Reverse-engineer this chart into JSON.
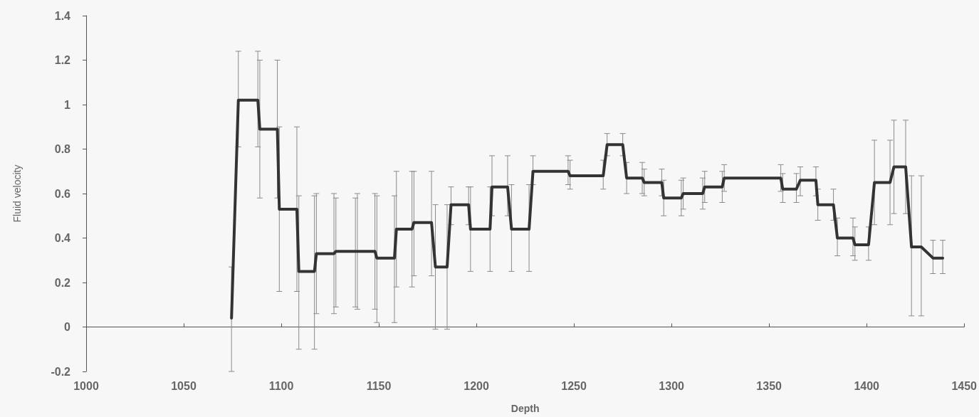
{
  "chart_data": {
    "type": "line",
    "xlabel": "Depth",
    "ylabel": "Fluid velocity",
    "xlim": [
      1000,
      1450
    ],
    "xticks": [
      1000,
      1050,
      1100,
      1150,
      1200,
      1250,
      1300,
      1350,
      1400,
      1450
    ],
    "ylim": [
      -0.2,
      1.4
    ],
    "yticks": [
      -0.2,
      0,
      0.2,
      0.4,
      0.6,
      0.8,
      1,
      1.2,
      1.4
    ],
    "marker": "none",
    "line_style": "solid",
    "series": [
      {
        "color": "#333333",
        "x": [
          1074.5,
          1078,
          1088,
          1089,
          1098,
          1099,
          1108,
          1109,
          1117,
          1118,
          1127,
          1128,
          1138,
          1139,
          1148,
          1149,
          1158,
          1159,
          1167,
          1168,
          1177,
          1179,
          1185,
          1187,
          1196,
          1197,
          1207,
          1208,
          1216,
          1218,
          1227,
          1229,
          1247,
          1248,
          1265,
          1267,
          1275,
          1277,
          1285,
          1286,
          1295,
          1296,
          1305,
          1306,
          1316,
          1317,
          1326,
          1327,
          1356,
          1357,
          1364,
          1366,
          1374,
          1375,
          1383,
          1385,
          1393,
          1394,
          1401,
          1404,
          1412,
          1414,
          1420,
          1423,
          1428,
          1434,
          1439
        ],
        "values": [
          0.04,
          1.02,
          1.02,
          0.89,
          0.89,
          0.53,
          0.53,
          0.25,
          0.25,
          0.33,
          0.33,
          0.34,
          0.34,
          0.34,
          0.34,
          0.31,
          0.31,
          0.44,
          0.44,
          0.47,
          0.47,
          0.27,
          0.27,
          0.55,
          0.55,
          0.44,
          0.44,
          0.63,
          0.63,
          0.44,
          0.44,
          0.7,
          0.7,
          0.68,
          0.68,
          0.82,
          0.82,
          0.67,
          0.67,
          0.65,
          0.65,
          0.58,
          0.58,
          0.6,
          0.6,
          0.63,
          0.63,
          0.67,
          0.67,
          0.62,
          0.62,
          0.66,
          0.66,
          0.55,
          0.55,
          0.4,
          0.4,
          0.37,
          0.37,
          0.65,
          0.65,
          0.72,
          0.72,
          0.36,
          0.36,
          0.31,
          0.31
        ],
        "errors": [
          [
            -0.2,
            0.27
          ],
          [
            0.81,
            1.24
          ],
          [
            0.81,
            1.24
          ],
          [
            0.58,
            1.2
          ],
          [
            0.58,
            1.2
          ],
          [
            0.16,
            0.9
          ],
          [
            0.16,
            0.9
          ],
          [
            -0.1,
            0.59
          ],
          [
            -0.1,
            0.59
          ],
          [
            0.06,
            0.6
          ],
          [
            0.06,
            0.6
          ],
          [
            0.09,
            0.58
          ],
          [
            0.09,
            0.58
          ],
          [
            0.08,
            0.6
          ],
          [
            0.08,
            0.6
          ],
          [
            0.02,
            0.59
          ],
          [
            0.02,
            0.59
          ],
          [
            0.18,
            0.7
          ],
          [
            0.18,
            0.7
          ],
          [
            0.23,
            0.7
          ],
          [
            0.23,
            0.7
          ],
          [
            -0.01,
            0.55
          ],
          [
            -0.01,
            0.55
          ],
          [
            0.46,
            0.63
          ],
          [
            0.46,
            0.63
          ],
          [
            0.25,
            0.63
          ],
          [
            0.25,
            0.63
          ],
          [
            0.5,
            0.77
          ],
          [
            0.5,
            0.77
          ],
          [
            0.25,
            0.64
          ],
          [
            0.25,
            0.64
          ],
          [
            0.64,
            0.77
          ],
          [
            0.64,
            0.77
          ],
          [
            0.62,
            0.75
          ],
          [
            0.62,
            0.75
          ],
          [
            0.77,
            0.87
          ],
          [
            0.77,
            0.87
          ],
          [
            0.6,
            0.74
          ],
          [
            0.6,
            0.74
          ],
          [
            0.59,
            0.71
          ],
          [
            0.59,
            0.71
          ],
          [
            0.5,
            0.66
          ],
          [
            0.5,
            0.66
          ],
          [
            0.53,
            0.67
          ],
          [
            0.53,
            0.67
          ],
          [
            0.56,
            0.7
          ],
          [
            0.56,
            0.7
          ],
          [
            0.61,
            0.73
          ],
          [
            0.61,
            0.73
          ],
          [
            0.56,
            0.69
          ],
          [
            0.56,
            0.69
          ],
          [
            0.59,
            0.72
          ],
          [
            0.59,
            0.72
          ],
          [
            0.48,
            0.62
          ],
          [
            0.48,
            0.62
          ],
          [
            0.32,
            0.49
          ],
          [
            0.32,
            0.49
          ],
          [
            0.3,
            0.45
          ],
          [
            0.3,
            0.45
          ],
          [
            0.46,
            0.84
          ],
          [
            0.46,
            0.84
          ],
          [
            0.51,
            0.93
          ],
          [
            0.51,
            0.93
          ],
          [
            0.05,
            0.68
          ],
          [
            0.05,
            0.68
          ],
          [
            0.24,
            0.39
          ],
          [
            0.24,
            0.39
          ]
        ]
      }
    ]
  }
}
